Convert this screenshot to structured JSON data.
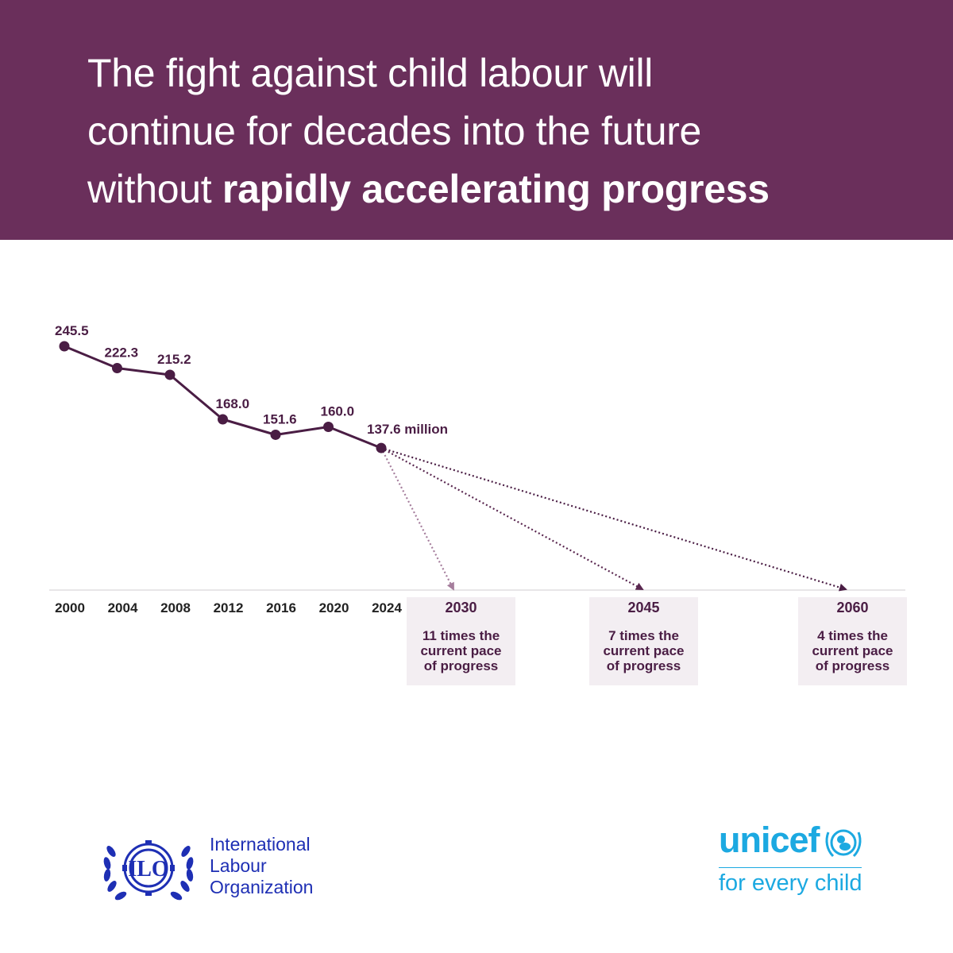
{
  "header": {
    "title_lines": [
      "The fight against child labour will",
      "continue for decades into the future"
    ],
    "title_line3_normal": "without ",
    "title_line3_bold": "rapidly accelerating progress"
  },
  "chart_data": {
    "type": "line",
    "x": [
      2000,
      2004,
      2008,
      2012,
      2016,
      2020,
      2024
    ],
    "categories": [
      "2000",
      "2004",
      "2008",
      "2012",
      "2016",
      "2020",
      "2024"
    ],
    "values": [
      245.5,
      222.3,
      215.2,
      168.0,
      151.6,
      160.0,
      137.6
    ],
    "data_labels": [
      "245.5",
      "222.3",
      "215.2",
      "168.0",
      "151.6",
      "160.0",
      "137.6 million"
    ],
    "projections": [
      {
        "year": "2030",
        "target_value": 0,
        "note": [
          "11 times the",
          "current pace",
          "of progress"
        ],
        "color": "#a57d9c"
      },
      {
        "year": "2045",
        "target_value": 0,
        "note": [
          "7 times the",
          "current pace",
          "of progress"
        ],
        "color": "#5a2850"
      },
      {
        "year": "2060",
        "target_value": 0,
        "note": [
          "4 times the",
          "current pace",
          "of progress"
        ],
        "color": "#4a1d44"
      }
    ],
    "title": "",
    "xlabel": "",
    "ylabel": "",
    "grid": false,
    "legend": "none"
  },
  "colors": {
    "header_bg": "#6a2f5b",
    "line": "#4a1d44",
    "note_bg": "#f3eef2",
    "ilo_blue": "#1e2fb4",
    "unicef_blue": "#1ca9e1"
  },
  "logos": {
    "ilo": {
      "emblem_letters": "ILO",
      "name_lines": [
        "International",
        "Labour",
        "Organization"
      ]
    },
    "unicef": {
      "wordmark": "unicef",
      "tagline": "for every child"
    }
  }
}
